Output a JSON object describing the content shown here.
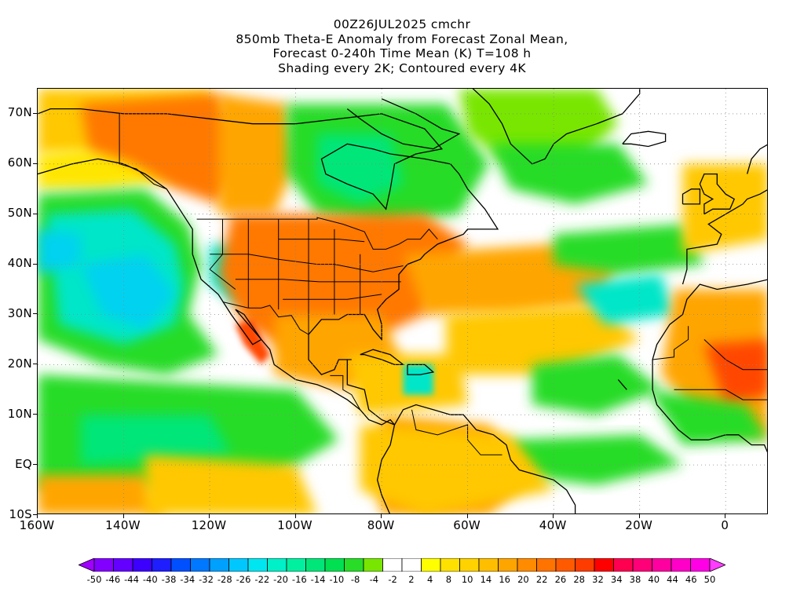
{
  "title": {
    "line1": "00Z26JUL2025 cmchr",
    "line2": "850mb Theta-E Anomaly from Forecast Zonal Mean,",
    "line3": "Forecast 0-240h Time Mean (K) T=108 h",
    "line4": "Shading every 2K; Contoured every 4K"
  },
  "map": {
    "lon_range": [
      -160,
      10
    ],
    "lat_range": [
      -10,
      75
    ],
    "lat_labels": [
      {
        "lat": 70,
        "text": "70N"
      },
      {
        "lat": 60,
        "text": "60N"
      },
      {
        "lat": 50,
        "text": "50N"
      },
      {
        "lat": 40,
        "text": "40N"
      },
      {
        "lat": 30,
        "text": "30N"
      },
      {
        "lat": 20,
        "text": "20N"
      },
      {
        "lat": 10,
        "text": "10N"
      },
      {
        "lat": 0,
        "text": "EQ"
      },
      {
        "lat": -10,
        "text": "10S"
      }
    ],
    "lon_labels": [
      {
        "lon": -160,
        "text": "160W"
      },
      {
        "lon": -140,
        "text": "140W"
      },
      {
        "lon": -120,
        "text": "120W"
      },
      {
        "lon": -100,
        "text": "100W"
      },
      {
        "lon": -80,
        "text": "80W"
      },
      {
        "lon": -60,
        "text": "60W"
      },
      {
        "lon": -40,
        "text": "40W"
      },
      {
        "lon": -20,
        "text": "20W"
      },
      {
        "lon": 0,
        "text": "0"
      }
    ]
  },
  "colorbar": {
    "labels": [
      "-50",
      "-46",
      "-44",
      "-40",
      "-38",
      "-34",
      "-32",
      "-28",
      "-26",
      "-22",
      "-20",
      "-16",
      "-14",
      "-10",
      "-8",
      "-4",
      "-2",
      "2",
      "4",
      "8",
      "10",
      "14",
      "16",
      "20",
      "22",
      "26",
      "28",
      "32",
      "34",
      "38",
      "40",
      "44",
      "46",
      "50"
    ],
    "colors": [
      "#a000ff",
      "#8200ff",
      "#6400ff",
      "#3c00ff",
      "#1e1eff",
      "#0050ff",
      "#0078ff",
      "#00a0ff",
      "#00c8ff",
      "#00e6f0",
      "#00f0c8",
      "#00f0a0",
      "#00e678",
      "#00e050",
      "#28dc28",
      "#78e600",
      "#ffffff",
      "#ffffff",
      "#ffff00",
      "#ffe100",
      "#ffd200",
      "#ffbe00",
      "#ffa500",
      "#ff8c00",
      "#ff7300",
      "#ff5a00",
      "#ff3c00",
      "#ff0000",
      "#ff0050",
      "#ff0078",
      "#ff00a0",
      "#ff00c8",
      "#ff00e6",
      "#ff3cff"
    ]
  },
  "palette": {
    "white": "#ffffff",
    "lime": "#78e600",
    "green": "#28dc28",
    "teal": "#00e678",
    "aqua": "#00e6c8",
    "cyan": "#00d2f0",
    "yellow": "#ffe600",
    "gold": "#ffc800",
    "orange": "#ffa500",
    "darkorange": "#ff7800",
    "red": "#ff4600"
  }
}
